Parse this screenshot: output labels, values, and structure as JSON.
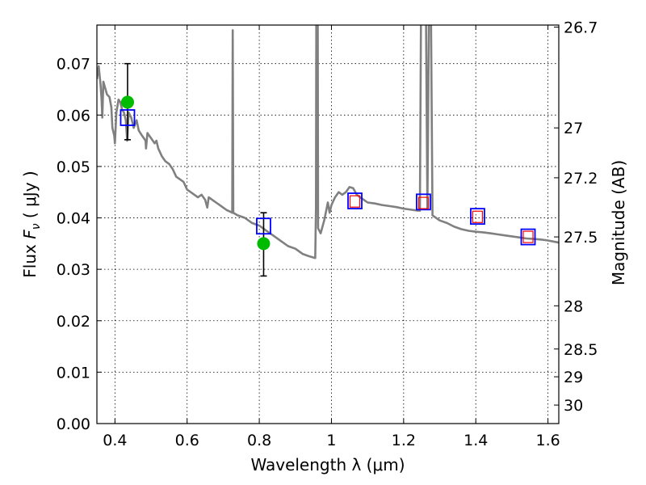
{
  "chart_data": {
    "type": "line",
    "xlabel": "Wavelength  λ (μm)",
    "ylabel": "Flux  F_ν  ( μJy )",
    "ylabel_parts": {
      "prefix": "Flux  ",
      "symbol": "F",
      "subscript": "ν",
      "unit": "  ( μJy )"
    },
    "y2label": "Magnitude (AB)",
    "xlim": [
      0.35,
      1.63
    ],
    "ylim": [
      0.0,
      0.0775
    ],
    "grid": true,
    "x_ticks": [
      {
        "value": 0.4,
        "label": "0.4"
      },
      {
        "value": 0.6,
        "label": "0.6"
      },
      {
        "value": 0.8,
        "label": "0.8"
      },
      {
        "value": 1.0,
        "label": "1"
      },
      {
        "value": 1.2,
        "label": "1.2"
      },
      {
        "value": 1.4,
        "label": "1.4"
      },
      {
        "value": 1.6,
        "label": "1.6"
      }
    ],
    "y_ticks": [
      {
        "value": 0.0,
        "label": "0.00"
      },
      {
        "value": 0.01,
        "label": "0.01"
      },
      {
        "value": 0.02,
        "label": "0.02"
      },
      {
        "value": 0.03,
        "label": "0.03"
      },
      {
        "value": 0.04,
        "label": "0.04"
      },
      {
        "value": 0.05,
        "label": "0.05"
      },
      {
        "value": 0.06,
        "label": "0.06"
      },
      {
        "value": 0.07,
        "label": "0.07"
      }
    ],
    "y2_ticks": [
      {
        "label": "26.7",
        "flux": 0.0771
      },
      {
        "label": "27",
        "flux": 0.0575
      },
      {
        "label": "27.2",
        "flux": 0.0478
      },
      {
        "label": "27.5",
        "flux": 0.0363
      },
      {
        "label": "28",
        "flux": 0.0229
      },
      {
        "label": "28.5",
        "flux": 0.0145
      },
      {
        "label": "29",
        "flux": 0.0091
      },
      {
        "label": "30",
        "flux": 0.0036
      }
    ],
    "model_spectrum": {
      "color": "#808080",
      "points": [
        [
          0.35,
          0.067
        ],
        [
          0.355,
          0.0695
        ],
        [
          0.36,
          0.066
        ],
        [
          0.363,
          0.063
        ],
        [
          0.365,
          0.0595
        ],
        [
          0.368,
          0.0665
        ],
        [
          0.372,
          0.0655
        ],
        [
          0.378,
          0.064
        ],
        [
          0.385,
          0.0635
        ],
        [
          0.39,
          0.0615
        ],
        [
          0.393,
          0.0575
        ],
        [
          0.398,
          0.056
        ],
        [
          0.4,
          0.0545
        ],
        [
          0.404,
          0.0605
        ],
        [
          0.41,
          0.063
        ],
        [
          0.415,
          0.0625
        ],
        [
          0.42,
          0.061
        ],
        [
          0.425,
          0.0605
        ],
        [
          0.43,
          0.059
        ],
        [
          0.434,
          0.055
        ],
        [
          0.438,
          0.0605
        ],
        [
          0.445,
          0.0595
        ],
        [
          0.452,
          0.0575
        ],
        [
          0.46,
          0.059
        ],
        [
          0.466,
          0.057
        ],
        [
          0.475,
          0.056
        ],
        [
          0.485,
          0.055
        ],
        [
          0.486,
          0.0535
        ],
        [
          0.49,
          0.0565
        ],
        [
          0.5,
          0.0555
        ],
        [
          0.51,
          0.0545
        ],
        [
          0.515,
          0.055
        ],
        [
          0.52,
          0.0535
        ],
        [
          0.53,
          0.052
        ],
        [
          0.54,
          0.051
        ],
        [
          0.55,
          0.0505
        ],
        [
          0.56,
          0.0495
        ],
        [
          0.57,
          0.048
        ],
        [
          0.58,
          0.0475
        ],
        [
          0.59,
          0.047
        ],
        [
          0.6,
          0.0455
        ],
        [
          0.61,
          0.045
        ],
        [
          0.62,
          0.0445
        ],
        [
          0.63,
          0.044
        ],
        [
          0.64,
          0.0445
        ],
        [
          0.65,
          0.0435
        ],
        [
          0.656,
          0.042
        ],
        [
          0.66,
          0.044
        ],
        [
          0.67,
          0.0435
        ],
        [
          0.68,
          0.043
        ],
        [
          0.69,
          0.0425
        ],
        [
          0.7,
          0.042
        ],
        [
          0.71,
          0.0415
        ],
        [
          0.72,
          0.0412
        ],
        [
          0.725,
          0.041
        ],
        [
          0.7265,
          0.0765
        ],
        [
          0.728,
          0.041
        ],
        [
          0.74,
          0.0405
        ],
        [
          0.76,
          0.04
        ],
        [
          0.78,
          0.039
        ],
        [
          0.8,
          0.0385
        ],
        [
          0.82,
          0.0375
        ],
        [
          0.84,
          0.0365
        ],
        [
          0.86,
          0.0355
        ],
        [
          0.88,
          0.0345
        ],
        [
          0.9,
          0.034
        ],
        [
          0.92,
          0.033
        ],
        [
          0.94,
          0.0325
        ],
        [
          0.955,
          0.0322
        ],
        [
          0.957,
          0.042
        ],
        [
          0.958,
          0.0778
        ],
        [
          0.962,
          0.0778
        ],
        [
          0.963,
          0.038
        ],
        [
          0.97,
          0.037
        ],
        [
          0.98,
          0.0395
        ],
        [
          0.99,
          0.043
        ],
        [
          0.995,
          0.041
        ],
        [
          1.0,
          0.0425
        ],
        [
          1.01,
          0.044
        ],
        [
          1.02,
          0.045
        ],
        [
          1.03,
          0.0445
        ],
        [
          1.04,
          0.045
        ],
        [
          1.05,
          0.046
        ],
        [
          1.06,
          0.0458
        ],
        [
          1.07,
          0.0445
        ],
        [
          1.08,
          0.044
        ],
        [
          1.09,
          0.0435
        ],
        [
          1.1,
          0.043
        ],
        [
          1.12,
          0.0428
        ],
        [
          1.14,
          0.0425
        ],
        [
          1.16,
          0.0423
        ],
        [
          1.18,
          0.0421
        ],
        [
          1.2,
          0.0418
        ],
        [
          1.22,
          0.0416
        ],
        [
          1.24,
          0.0414
        ],
        [
          1.245,
          0.0414
        ],
        [
          1.248,
          0.0778
        ],
        [
          1.262,
          0.0778
        ],
        [
          1.266,
          0.0418
        ],
        [
          1.27,
          0.0778
        ],
        [
          1.276,
          0.0778
        ],
        [
          1.28,
          0.0405
        ],
        [
          1.3,
          0.0395
        ],
        [
          1.32,
          0.039
        ],
        [
          1.34,
          0.0383
        ],
        [
          1.36,
          0.0378
        ],
        [
          1.38,
          0.0375
        ],
        [
          1.4,
          0.0373
        ],
        [
          1.42,
          0.0372
        ],
        [
          1.44,
          0.037
        ],
        [
          1.46,
          0.0368
        ],
        [
          1.48,
          0.0366
        ],
        [
          1.5,
          0.0364
        ],
        [
          1.52,
          0.0362
        ],
        [
          1.54,
          0.036
        ],
        [
          1.56,
          0.0359
        ],
        [
          1.58,
          0.0358
        ],
        [
          1.6,
          0.0356
        ],
        [
          1.615,
          0.0354
        ],
        [
          1.63,
          0.0352
        ]
      ]
    },
    "observed_points": {
      "color": "#00bb00",
      "points": [
        {
          "x": 0.435,
          "y": 0.0625,
          "yerr_low": 0.0552,
          "yerr_high": 0.07
        },
        {
          "x": 0.812,
          "y": 0.035,
          "yerr_low": 0.0287,
          "yerr_high": 0.041
        }
      ]
    },
    "model_photometry": {
      "color": "#0000ff",
      "points": [
        {
          "x": 0.435,
          "y": 0.0595
        },
        {
          "x": 0.812,
          "y": 0.0384
        },
        {
          "x": 1.065,
          "y": 0.0433
        },
        {
          "x": 1.255,
          "y": 0.0431
        },
        {
          "x": 1.405,
          "y": 0.0403
        },
        {
          "x": 1.545,
          "y": 0.0363
        }
      ]
    },
    "upper_photometry": {
      "color": "#ff0000",
      "points": [
        {
          "x": 1.065,
          "y": 0.0432
        },
        {
          "x": 1.255,
          "y": 0.0429
        },
        {
          "x": 1.405,
          "y": 0.0402
        },
        {
          "x": 1.545,
          "y": 0.0363
        }
      ]
    }
  }
}
